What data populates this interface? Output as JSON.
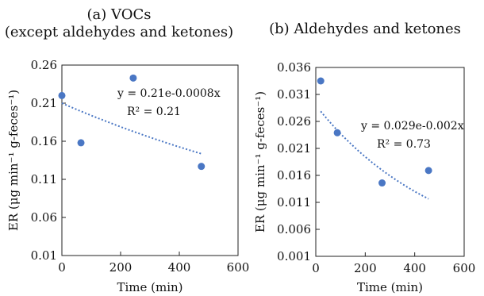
{
  "chart_data": [
    {
      "type": "scatter",
      "title": "(a) VOCs",
      "subtitle": "(except aldehydes and ketones)",
      "xlabel": "Time (min)",
      "ylabel": "ER (μg min⁻¹ g-feces⁻¹)",
      "xlim": [
        0,
        600
      ],
      "ylim": [
        0.01,
        0.26
      ],
      "xticks": [
        0,
        200,
        400,
        600
      ],
      "xtick_labels": [
        "0",
        "200",
        "400",
        "600"
      ],
      "yticks": [
        0.01,
        0.06,
        0.11,
        0.16,
        0.21,
        0.26
      ],
      "ytick_labels": [
        "0.01",
        "0.06",
        "0.11",
        "0.16",
        "0.21",
        "0.26"
      ],
      "points": [
        {
          "x": 0,
          "y": 0.22
        },
        {
          "x": 65,
          "y": 0.158
        },
        {
          "x": 243,
          "y": 0.243
        },
        {
          "x": 475,
          "y": 0.127
        }
      ],
      "fit": {
        "a": 0.21,
        "b": -0.0008,
        "x_range": [
          0,
          475
        ]
      },
      "equation": "y = 0.21e-0.0008x",
      "r2": "R² = 0.21",
      "marker_color": "#4a77c4",
      "fit_color": "#4a77c4",
      "grid": false,
      "legend": "none"
    },
    {
      "type": "scatter",
      "title": "(b) Aldehydes and ketones",
      "xlabel": "Time (min)",
      "ylabel": "ER (μg min⁻¹ g-feces⁻¹)",
      "xlim": [
        0,
        600
      ],
      "ylim": [
        0.001,
        0.036
      ],
      "xticks": [
        0,
        200,
        400,
        600
      ],
      "xtick_labels": [
        "0",
        "200",
        "400",
        "600"
      ],
      "yticks": [
        0.001,
        0.006,
        0.011,
        0.016,
        0.021,
        0.026,
        0.031,
        0.036
      ],
      "ytick_labels": [
        "0.001",
        "0.006",
        "0.011",
        "0.016",
        "0.021",
        "0.026",
        "0.031",
        "0.036"
      ],
      "points": [
        {
          "x": 20,
          "y": 0.0335
        },
        {
          "x": 87,
          "y": 0.0239
        },
        {
          "x": 268,
          "y": 0.0146
        },
        {
          "x": 456,
          "y": 0.0169
        }
      ],
      "fit": {
        "a": 0.029,
        "b": -0.002,
        "x_range": [
          20,
          456
        ]
      },
      "equation": "y = 0.029e-0.002x",
      "r2": "R² = 0.73",
      "marker_color": "#4a77c4",
      "fit_color": "#4a77c4",
      "grid": false,
      "legend": "none"
    }
  ]
}
